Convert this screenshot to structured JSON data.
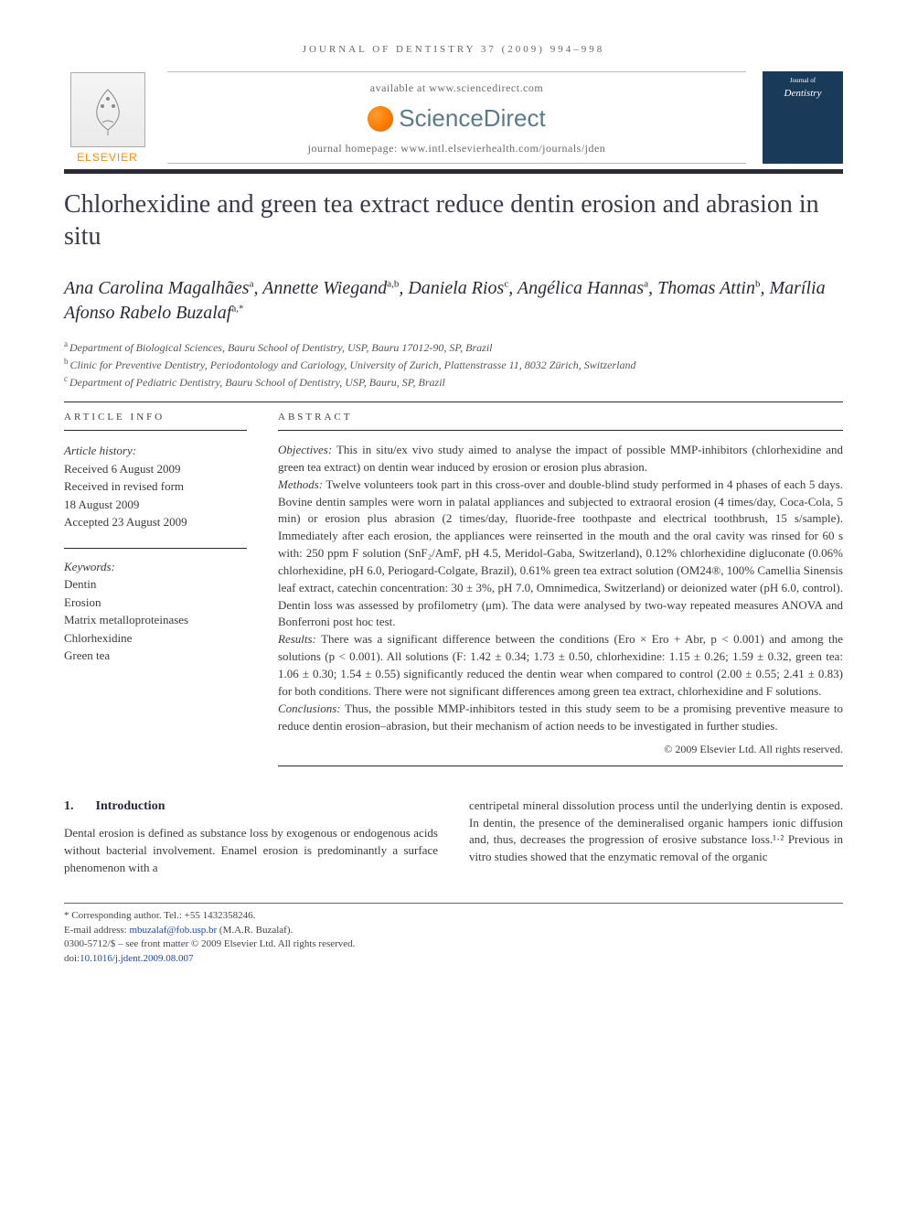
{
  "running_head": "JOURNAL OF DENTISTRY 37 (2009) 994–998",
  "masthead": {
    "available_at": "available at www.sciencedirect.com",
    "sd_brand": "ScienceDirect",
    "homepage": "journal homepage: www.intl.elsevierhealth.com/journals/jden",
    "publisher": "ELSEVIER",
    "cover_journal": "Dentistry"
  },
  "title": "Chlorhexidine and green tea extract reduce dentin erosion and abrasion in situ",
  "authors_html": "Ana Carolina Magalhães<sup>a</sup>, Annette Wiegand<sup>a,b</sup>, Daniela Rios<sup>c</sup>, Angélica Hannas<sup>a</sup>, Thomas Attin<sup>b</sup>, Marília Afonso Rabelo Buzalaf<sup>a,*</sup>",
  "affiliations": [
    {
      "marker": "a",
      "text": "Department of Biological Sciences, Bauru School of Dentistry, USP, Bauru 17012-90, SP, Brazil"
    },
    {
      "marker": "b",
      "text": "Clinic for Preventive Dentistry, Periodontology and Cariology, University of Zurich, Plattenstrasse 11, 8032 Zürich, Switzerland"
    },
    {
      "marker": "c",
      "text": "Department of Pediatric Dentistry, Bauru School of Dentistry, USP, Bauru, SP, Brazil"
    }
  ],
  "article_info": {
    "heading": "ARTICLE INFO",
    "history_label": "Article history:",
    "history": [
      "Received 6 August 2009",
      "Received in revised form",
      "18 August 2009",
      "Accepted 23 August 2009"
    ],
    "keywords_label": "Keywords:",
    "keywords": [
      "Dentin",
      "Erosion",
      "Matrix metalloproteinases",
      "Chlorhexidine",
      "Green tea"
    ]
  },
  "abstract": {
    "heading": "ABSTRACT",
    "objectives_label": "Objectives:",
    "objectives": " This in situ/ex vivo study aimed to analyse the impact of possible MMP-inhibitors (chlorhexidine and green tea extract) on dentin wear induced by erosion or erosion plus abrasion.",
    "methods_label": "Methods:",
    "methods": " Twelve volunteers took part in this cross-over and double-blind study performed in 4 phases of each 5 days. Bovine dentin samples were worn in palatal appliances and subjected to extraoral erosion (4 times/day, Coca-Cola, 5 min) or erosion plus abrasion (2 times/day, fluoride-free toothpaste and electrical toothbrush, 15 s/sample). Immediately after each erosion, the appliances were reinserted in the mouth and the oral cavity was rinsed for 60 s with: 250 ppm F solution (SnF₂/AmF, pH 4.5, Meridol-Gaba, Switzerland), 0.12% chlorhexidine digluconate (0.06% chlorhexidine, pH 6.0, Periogard-Colgate, Brazil), 0.61% green tea extract solution (OM24®, 100% Camellia Sinensis leaf extract, catechin concentration: 30 ± 3%, pH 7.0, Omnimedica, Switzerland) or deionized water (pH 6.0, control). Dentin loss was assessed by profilometry (μm). The data were analysed by two-way repeated measures ANOVA and Bonferroni post hoc test.",
    "results_label": "Results:",
    "results": " There was a significant difference between the conditions (Ero × Ero + Abr, p < 0.001) and among the solutions (p < 0.001). All solutions (F: 1.42 ± 0.34; 1.73 ± 0.50, chlorhexidine: 1.15 ± 0.26; 1.59 ± 0.32, green tea: 1.06 ± 0.30; 1.54 ± 0.55) significantly reduced the dentin wear when compared to control (2.00 ± 0.55; 2.41 ± 0.83) for both conditions. There were not significant differences among green tea extract, chlorhexidine and F solutions.",
    "conclusions_label": "Conclusions:",
    "conclusions": " Thus, the possible MMP-inhibitors tested in this study seem to be a promising preventive measure to reduce dentin erosion–abrasion, but their mechanism of action needs to be investigated in further studies.",
    "copyright": "© 2009 Elsevier Ltd. All rights reserved."
  },
  "introduction": {
    "number": "1.",
    "heading": "Introduction",
    "col1": "Dental erosion is defined as substance loss by exogenous or endogenous acids without bacterial involvement. Enamel erosion is predominantly a surface phenomenon with a",
    "col2": "centripetal mineral dissolution process until the underlying dentin is exposed. In dentin, the presence of the demineralised organic hampers ionic diffusion and, thus, decreases the progression of erosive substance loss.¹·² Previous in vitro studies showed that the enzymatic removal of the organic"
  },
  "footnotes": {
    "corresponding": "* Corresponding author. Tel.: +55 1432358246.",
    "email_label": "E-mail address: ",
    "email": "mbuzalaf@fob.usp.br",
    "email_attribution": " (M.A.R. Buzalaf).",
    "issn_line": "0300-5712/$ – see front matter © 2009 Elsevier Ltd. All rights reserved.",
    "doi_label": "doi:",
    "doi": "10.1016/j.jdent.2009.08.007"
  },
  "colors": {
    "rule": "#2a2a36",
    "text": "#3a3a3a",
    "elsevier_orange": "#ff8a00",
    "link": "#1a4aa8"
  }
}
